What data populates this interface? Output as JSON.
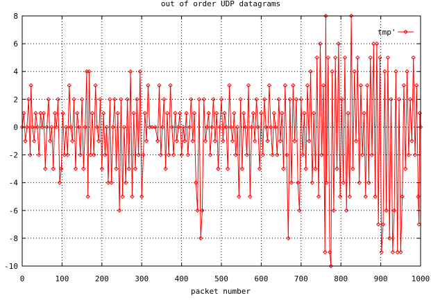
{
  "chart_data": {
    "type": "line",
    "title": "out of order UDP datagrams",
    "xlabel": "packet number",
    "ylabel": "",
    "xlim": [
      0,
      1000
    ],
    "ylim": [
      -10,
      8
    ],
    "xticks": [
      0,
      100,
      200,
      300,
      400,
      500,
      600,
      700,
      800,
      900,
      1000
    ],
    "yticks": [
      -10,
      -8,
      -6,
      -4,
      -2,
      0,
      2,
      4,
      6,
      8
    ],
    "grid": true,
    "legend_position": "top-right",
    "series": [
      {
        "name": "tmp'",
        "color": "#ff0000",
        "marker": "diamond",
        "points": [
          [
            0,
            0
          ],
          [
            4,
            1
          ],
          [
            8,
            -1
          ],
          [
            12,
            0
          ],
          [
            16,
            2
          ],
          [
            20,
            -2
          ],
          [
            22,
            3
          ],
          [
            26,
            0
          ],
          [
            30,
            -1
          ],
          [
            34,
            1
          ],
          [
            38,
            0
          ],
          [
            42,
            -2
          ],
          [
            46,
            1
          ],
          [
            50,
            0
          ],
          [
            54,
            1
          ],
          [
            58,
            -3
          ],
          [
            62,
            0
          ],
          [
            66,
            2
          ],
          [
            70,
            -1
          ],
          [
            74,
            0
          ],
          [
            78,
            -3
          ],
          [
            82,
            1
          ],
          [
            86,
            0
          ],
          [
            90,
            2
          ],
          [
            94,
            -4
          ],
          [
            98,
            -3
          ],
          [
            102,
            1
          ],
          [
            106,
            -2
          ],
          [
            110,
            0
          ],
          [
            114,
            -2
          ],
          [
            118,
            3
          ],
          [
            122,
            0
          ],
          [
            126,
            -1
          ],
          [
            130,
            2
          ],
          [
            134,
            -3
          ],
          [
            138,
            1
          ],
          [
            142,
            0
          ],
          [
            146,
            -2
          ],
          [
            150,
            2
          ],
          [
            154,
            -3
          ],
          [
            158,
            0
          ],
          [
            162,
            4
          ],
          [
            165,
            -5
          ],
          [
            168,
            4
          ],
          [
            172,
            -2
          ],
          [
            176,
            1
          ],
          [
            180,
            -2
          ],
          [
            184,
            3
          ],
          [
            188,
            0
          ],
          [
            192,
            -1
          ],
          [
            196,
            2
          ],
          [
            200,
            -3
          ],
          [
            204,
            1
          ],
          [
            208,
            -2
          ],
          [
            212,
            0
          ],
          [
            216,
            -4
          ],
          [
            220,
            2
          ],
          [
            224,
            -4
          ],
          [
            228,
            0
          ],
          [
            232,
            2
          ],
          [
            236,
            -3
          ],
          [
            240,
            1
          ],
          [
            244,
            -6
          ],
          [
            248,
            2
          ],
          [
            252,
            -5
          ],
          [
            256,
            0
          ],
          [
            260,
            -4
          ],
          [
            264,
            2
          ],
          [
            268,
            -3
          ],
          [
            272,
            4
          ],
          [
            276,
            -5
          ],
          [
            280,
            1
          ],
          [
            284,
            -3
          ],
          [
            288,
            2
          ],
          [
            292,
            -2
          ],
          [
            296,
            4
          ],
          [
            300,
            -5
          ],
          [
            304,
            -2
          ],
          [
            308,
            1
          ],
          [
            312,
            -1
          ],
          [
            316,
            3
          ],
          [
            320,
            0
          ],
          [
            326,
            0
          ],
          [
            334,
            0
          ],
          [
            340,
            -1
          ],
          [
            344,
            3
          ],
          [
            348,
            -2
          ],
          [
            352,
            0
          ],
          [
            356,
            2
          ],
          [
            360,
            -3
          ],
          [
            364,
            1
          ],
          [
            368,
            -2
          ],
          [
            372,
            3
          ],
          [
            376,
            0
          ],
          [
            380,
            -2
          ],
          [
            384,
            1
          ],
          [
            388,
            -1
          ],
          [
            392,
            0
          ],
          [
            396,
            1
          ],
          [
            400,
            -2
          ],
          [
            404,
            0
          ],
          [
            408,
            -1
          ],
          [
            412,
            1
          ],
          [
            416,
            -2
          ],
          [
            420,
            0
          ],
          [
            424,
            2
          ],
          [
            428,
            -1
          ],
          [
            432,
            1
          ],
          [
            436,
            -4
          ],
          [
            440,
            -6
          ],
          [
            444,
            2
          ],
          [
            448,
            -8
          ],
          [
            452,
            -6
          ],
          [
            456,
            2
          ],
          [
            460,
            -1
          ],
          [
            464,
            0
          ],
          [
            468,
            1
          ],
          [
            472,
            -2
          ],
          [
            476,
            0
          ],
          [
            480,
            2
          ],
          [
            484,
            -1
          ],
          [
            488,
            1
          ],
          [
            492,
            -3
          ],
          [
            496,
            0
          ],
          [
            500,
            2
          ],
          [
            504,
            -1
          ],
          [
            508,
            1
          ],
          [
            512,
            0
          ],
          [
            516,
            -3
          ],
          [
            520,
            3
          ],
          [
            524,
            0
          ],
          [
            528,
            -1
          ],
          [
            532,
            1
          ],
          [
            536,
            -2
          ],
          [
            540,
            0
          ],
          [
            544,
            -5
          ],
          [
            548,
            2
          ],
          [
            552,
            -3
          ],
          [
            556,
            1
          ],
          [
            560,
            0
          ],
          [
            564,
            -2
          ],
          [
            568,
            3
          ],
          [
            572,
            -5
          ],
          [
            576,
            0
          ],
          [
            580,
            1
          ],
          [
            584,
            -1
          ],
          [
            588,
            2
          ],
          [
            592,
            0
          ],
          [
            596,
            -3
          ],
          [
            600,
            1
          ],
          [
            604,
            -2
          ],
          [
            608,
            2
          ],
          [
            612,
            0
          ],
          [
            616,
            -1
          ],
          [
            620,
            3
          ],
          [
            624,
            0
          ],
          [
            628,
            -2
          ],
          [
            632,
            1
          ],
          [
            636,
            0
          ],
          [
            640,
            -2
          ],
          [
            644,
            2
          ],
          [
            648,
            -1
          ],
          [
            652,
            1
          ],
          [
            656,
            -3
          ],
          [
            660,
            3
          ],
          [
            664,
            -2
          ],
          [
            668,
            -8
          ],
          [
            672,
            2
          ],
          [
            676,
            -4
          ],
          [
            680,
            3
          ],
          [
            684,
            -1
          ],
          [
            688,
            2
          ],
          [
            692,
            -4
          ],
          [
            696,
            -6
          ],
          [
            700,
            2
          ],
          [
            704,
            -2
          ],
          [
            708,
            1
          ],
          [
            712,
            -3
          ],
          [
            716,
            3
          ],
          [
            720,
            -1
          ],
          [
            724,
            4
          ],
          [
            728,
            -4
          ],
          [
            732,
            1
          ],
          [
            736,
            -3
          ],
          [
            740,
            5
          ],
          [
            744,
            -5
          ],
          [
            748,
            6
          ],
          [
            752,
            -2
          ],
          [
            756,
            3
          ],
          [
            760,
            -9
          ],
          [
            762,
            8
          ],
          [
            764,
            -4
          ],
          [
            768,
            5
          ],
          [
            772,
            -9
          ],
          [
            775,
            -10
          ],
          [
            778,
            4
          ],
          [
            782,
            -6
          ],
          [
            786,
            5
          ],
          [
            790,
            -3
          ],
          [
            794,
            6
          ],
          [
            798,
            -5
          ],
          [
            802,
            2
          ],
          [
            806,
            -4
          ],
          [
            810,
            5
          ],
          [
            814,
            -6
          ],
          [
            818,
            1
          ],
          [
            822,
            -5
          ],
          [
            826,
            8
          ],
          [
            830,
            -3
          ],
          [
            834,
            4
          ],
          [
            838,
            -1
          ],
          [
            842,
            5
          ],
          [
            846,
            -4
          ],
          [
            850,
            3
          ],
          [
            854,
            -2
          ],
          [
            858,
            1
          ],
          [
            862,
            -5
          ],
          [
            866,
            3
          ],
          [
            870,
            -4
          ],
          [
            874,
            5
          ],
          [
            878,
            -2
          ],
          [
            882,
            6
          ],
          [
            886,
            -5
          ],
          [
            890,
            6
          ],
          [
            894,
            -7
          ],
          [
            898,
            5
          ],
          [
            902,
            -9
          ],
          [
            906,
            -7
          ],
          [
            910,
            4
          ],
          [
            914,
            -6
          ],
          [
            918,
            5
          ],
          [
            922,
            -8
          ],
          [
            926,
            2
          ],
          [
            930,
            -9
          ],
          [
            934,
            -6
          ],
          [
            938,
            4
          ],
          [
            942,
            -9
          ],
          [
            946,
            2
          ],
          [
            950,
            -9
          ],
          [
            954,
            -5
          ],
          [
            958,
            3
          ],
          [
            962,
            -3
          ],
          [
            966,
            4
          ],
          [
            970,
            -2
          ],
          [
            974,
            2
          ],
          [
            978,
            -1
          ],
          [
            982,
            5
          ],
          [
            986,
            -2
          ],
          [
            990,
            3
          ],
          [
            994,
            -5
          ],
          [
            996,
            -7
          ],
          [
            998,
            1
          ],
          [
            1000,
            0
          ]
        ]
      }
    ]
  }
}
